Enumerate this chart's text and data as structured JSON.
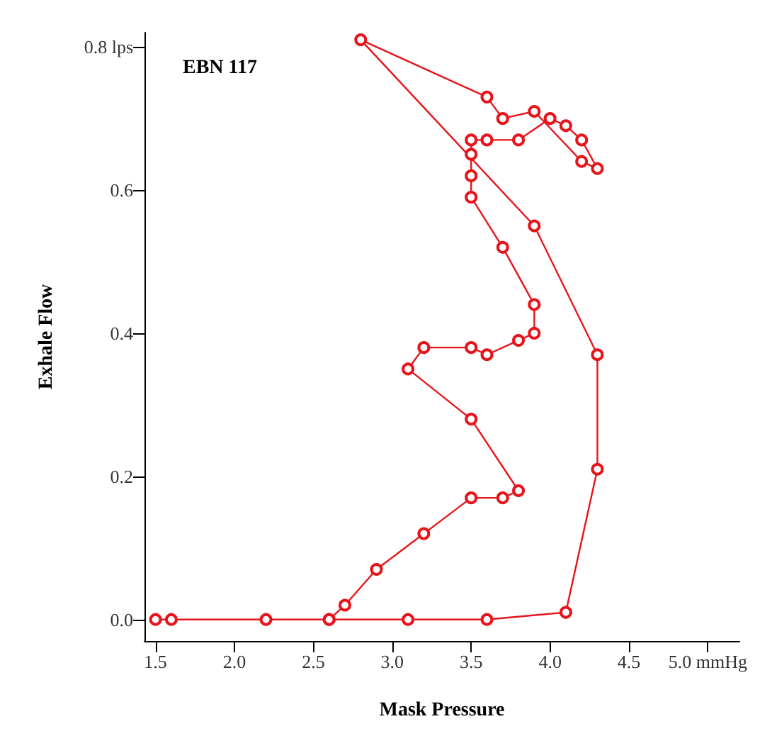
{
  "chart_data": {
    "type": "line",
    "title": "EBN 117",
    "xlabel": "Mask Pressure",
    "ylabel": "Exhale Flow",
    "series": [
      {
        "color": "#e8141b",
        "x": [
          1.5,
          1.6,
          2.2,
          2.6,
          2.7,
          2.9,
          3.2,
          3.5,
          3.7,
          3.8,
          3.5,
          3.1,
          3.2,
          3.5,
          3.6,
          3.8,
          3.9,
          3.9,
          3.7,
          3.5,
          3.5,
          3.5,
          3.5,
          3.6,
          3.8,
          4.0,
          4.1,
          4.2,
          4.3,
          4.2,
          3.9,
          3.7,
          3.6,
          2.8,
          3.9,
          4.3,
          4.3,
          4.1,
          3.6,
          3.1,
          2.6
        ],
        "values": [
          0.0,
          0.0,
          0.0,
          0.0,
          0.02,
          0.07,
          0.12,
          0.17,
          0.17,
          0.18,
          0.28,
          0.35,
          0.38,
          0.38,
          0.37,
          0.39,
          0.4,
          0.44,
          0.52,
          0.59,
          0.62,
          0.65,
          0.67,
          0.67,
          0.67,
          0.7,
          0.69,
          0.67,
          0.63,
          0.64,
          0.71,
          0.7,
          0.73,
          0.81,
          0.55,
          0.37,
          0.21,
          0.01,
          0.0,
          0.0,
          0.0
        ]
      }
    ],
    "xlim": [
      1.43,
      5.2
    ],
    "xticks": [
      1.5,
      {
        "value": 2,
        "label": "2.0"
      },
      2.5,
      {
        "value": 3,
        "label": "3.0"
      },
      3.5,
      {
        "value": 4,
        "label": "4.0"
      },
      4.5,
      {
        "value": 5,
        "label": "5.0 mmHg"
      }
    ],
    "ylim": [
      -0.03,
      0.82
    ],
    "yticks": [
      {
        "value": 0,
        "label": "0.0"
      },
      0.2,
      0.4,
      0.6,
      {
        "value": 0.8,
        "label": "0.8 lps"
      }
    ],
    "grid": false,
    "marker": "circle",
    "line_style": "solid"
  }
}
